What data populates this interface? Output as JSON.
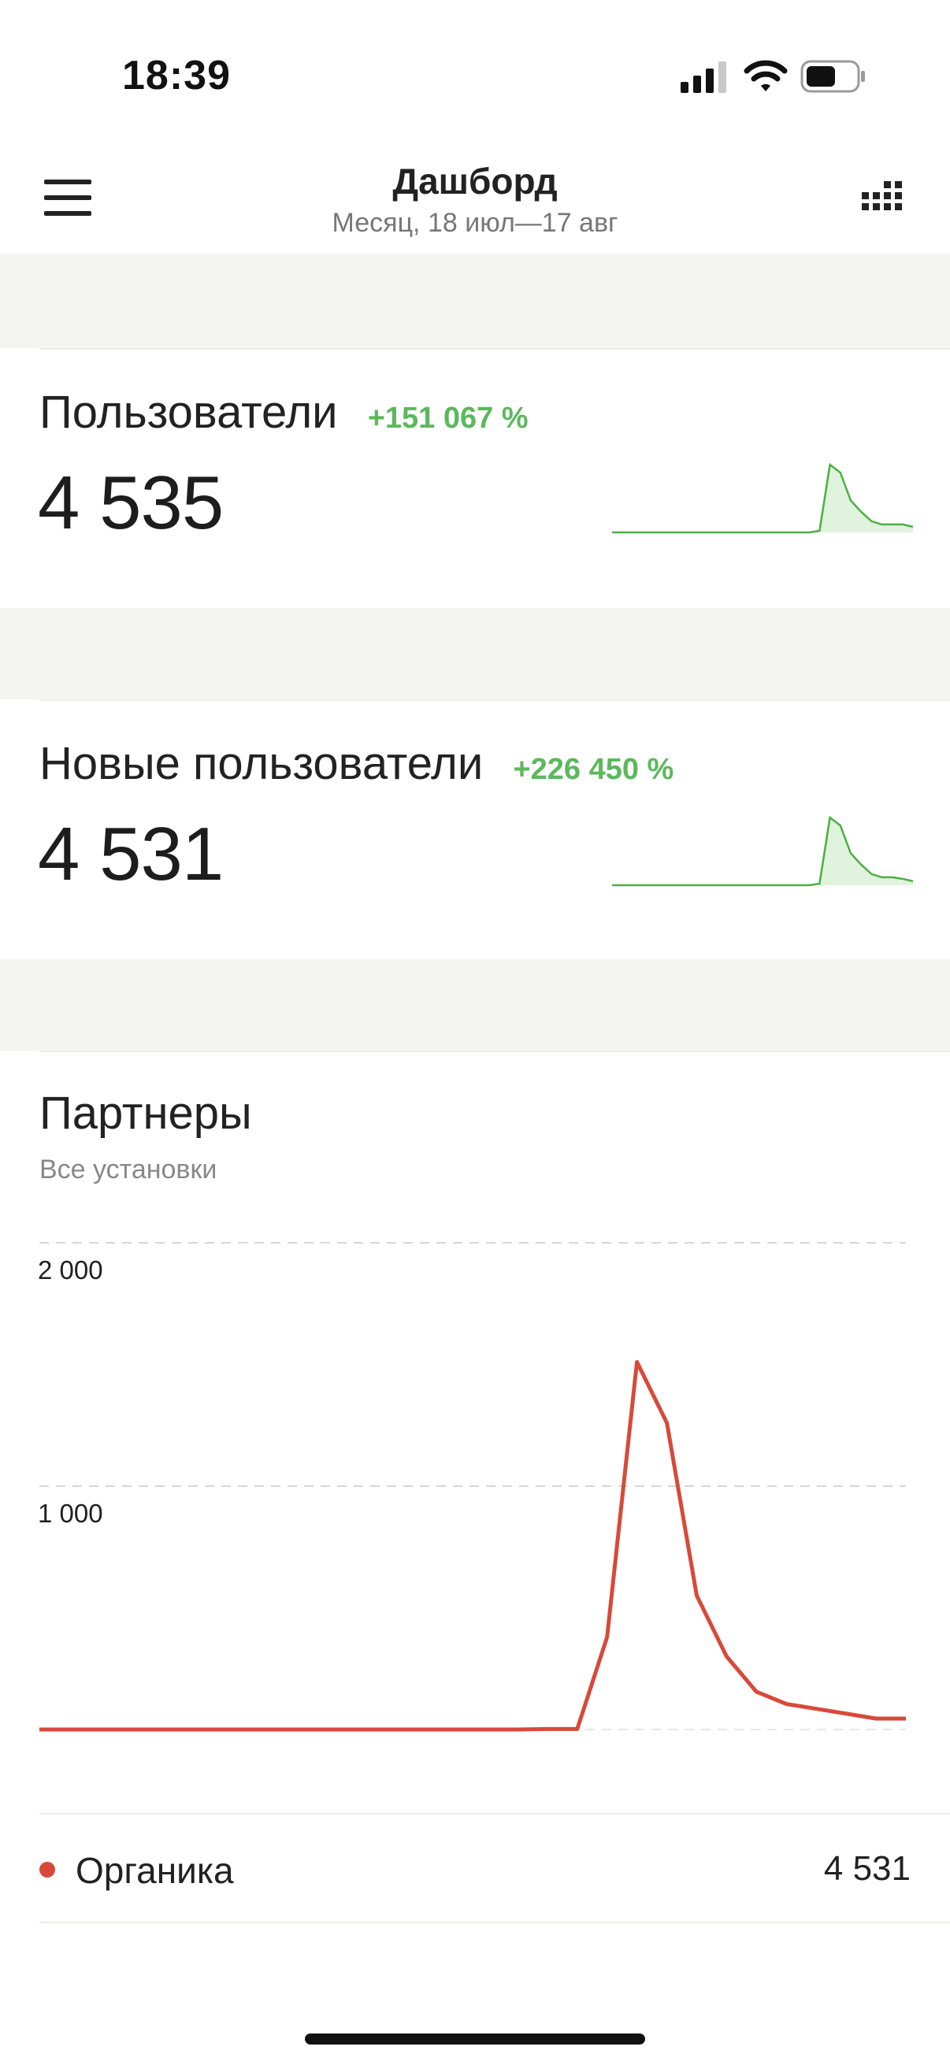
{
  "status_bar": {
    "time": "18:39",
    "icons": [
      "signal-icon",
      "wifi-icon",
      "battery-icon"
    ]
  },
  "header": {
    "title": "Дашборд",
    "subtitle": "Месяц, 18 июл—17 авг",
    "menu_icon": "hamburger-menu-icon",
    "apps_icon": "grid-apps-icon"
  },
  "cards": [
    {
      "title": "Пользователи",
      "delta": "+151 067 %",
      "value": "4 535",
      "sparkline": [
        0,
        0,
        0,
        0,
        0,
        0,
        0,
        0,
        0,
        0,
        0,
        0,
        0,
        0,
        0,
        0,
        0,
        0,
        0,
        0,
        2,
        85,
        75,
        40,
        26,
        14,
        10,
        10,
        10,
        7
      ]
    },
    {
      "title": "Новые пользователи",
      "delta": "+226 450 %",
      "value": "4 531",
      "sparkline": [
        0,
        0,
        0,
        0,
        0,
        0,
        0,
        0,
        0,
        0,
        0,
        0,
        0,
        0,
        0,
        0,
        0,
        0,
        0,
        0,
        2,
        85,
        75,
        40,
        26,
        14,
        10,
        10,
        8,
        5
      ]
    }
  ],
  "partners": {
    "title": "Партнеры",
    "subtitle": "Все установки",
    "legend": [
      {
        "name": "Органика",
        "value": "4 531",
        "color": "#d8493a"
      }
    ]
  },
  "chart_data": {
    "type": "line",
    "title": "Партнеры",
    "subtitle": "Все установки",
    "yticks": [
      1000,
      2000
    ],
    "ytick_labels": [
      "1 000",
      "2 000"
    ],
    "ylim": [
      0,
      2000
    ],
    "grid": true,
    "series": [
      {
        "name": "Органика",
        "color": "#d8493a",
        "values": [
          0,
          0,
          0,
          0,
          0,
          0,
          0,
          0,
          0,
          0,
          0,
          0,
          0,
          0,
          0,
          0,
          0,
          2,
          2,
          380,
          1510,
          1260,
          550,
          300,
          155,
          105,
          85,
          65,
          45,
          45
        ]
      }
    ]
  }
}
